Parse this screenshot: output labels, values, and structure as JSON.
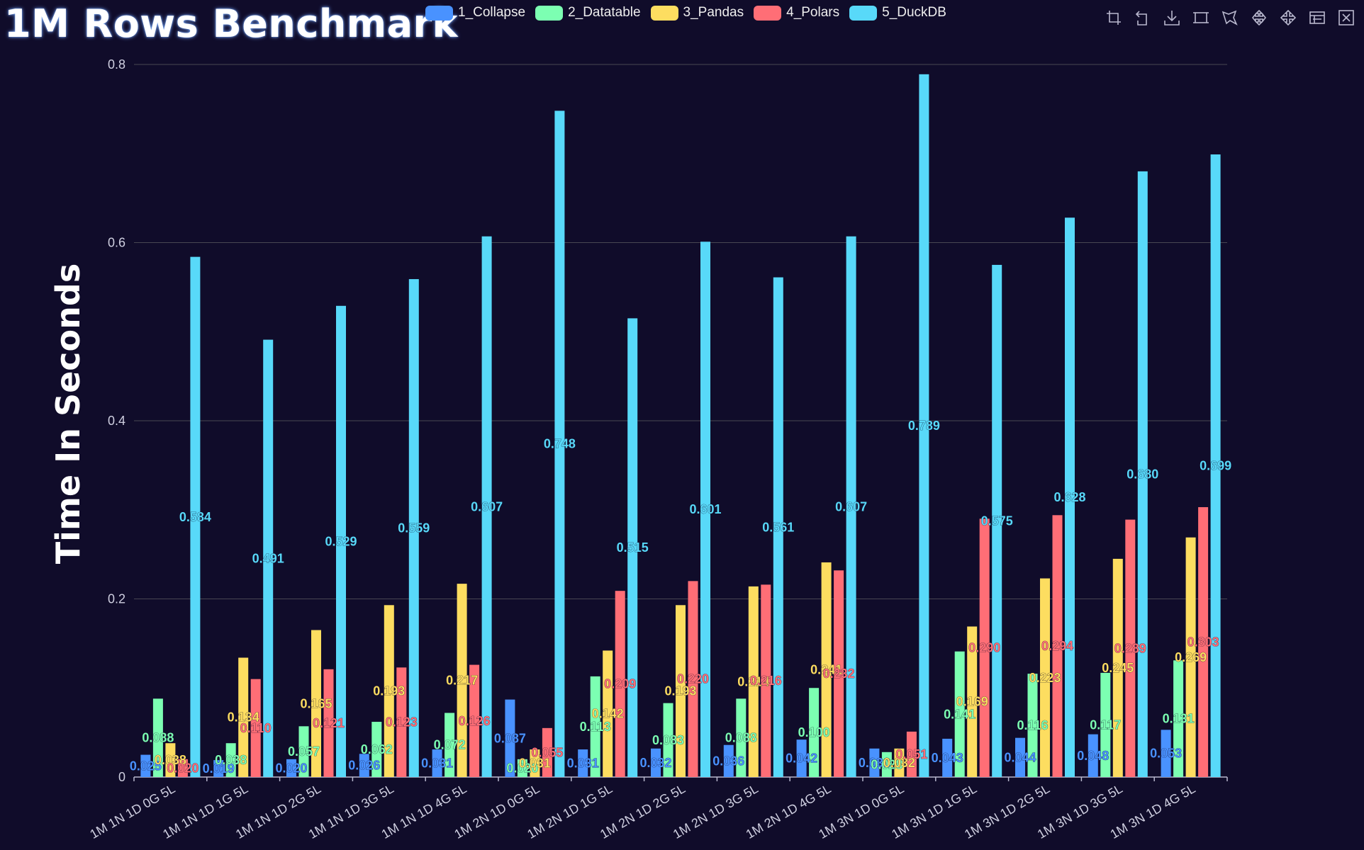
{
  "title": "1M Rows Benchmark",
  "legend": {
    "position": "top",
    "items": [
      {
        "label": "1_Collapse",
        "color": "#4992ff"
      },
      {
        "label": "2_Datatable",
        "color": "#7cffb2"
      },
      {
        "label": "3_Pandas",
        "color": "#fddd60"
      },
      {
        "label": "4_Polars",
        "color": "#ff6e76"
      },
      {
        "label": "5_DuckDB",
        "color": "#58d9f9"
      }
    ]
  },
  "toolbox": [
    {
      "name": "zoom-icon"
    },
    {
      "name": "zoom-reset-icon"
    },
    {
      "name": "save-image-icon"
    },
    {
      "name": "rect-select-icon"
    },
    {
      "name": "polygon-select-icon"
    },
    {
      "name": "keep-selection-icon"
    },
    {
      "name": "clear-selection-icon"
    },
    {
      "name": "data-view-icon"
    },
    {
      "name": "restore-icon"
    }
  ],
  "colors": {
    "background": "#100c2a",
    "grid": "#484753",
    "axis": "#b9b8ce"
  },
  "chart_data": {
    "type": "bar",
    "title": "1M Rows Benchmark",
    "ylabel": "Time In Seconds",
    "xlabel": "",
    "ylim": [
      0,
      0.8
    ],
    "yticks": [
      "0",
      "0.2",
      "0.4",
      "0.6",
      "0.8"
    ],
    "grid": true,
    "categories": [
      "1M 1N 1D 0G 5L",
      "1M 1N 1D 1G 5L",
      "1M 1N 1D 2G 5L",
      "1M 1N 1D 3G 5L",
      "1M 1N 1D 4G 5L",
      "1M 2N 1D 0G 5L",
      "1M 2N 1D 1G 5L",
      "1M 2N 1D 2G 5L",
      "1M 2N 1D 3G 5L",
      "1M 2N 1D 4G 5L",
      "1M 3N 1D 0G 5L",
      "1M 3N 1D 1G 5L",
      "1M 3N 1D 2G 5L",
      "1M 3N 1D 3G 5L",
      "1M 3N 1D 4G 5L"
    ],
    "series": [
      {
        "name": "1_Collapse",
        "color": "#4992ff",
        "values": [
          0.025,
          0.019,
          0.02,
          0.026,
          0.031,
          0.087,
          0.031,
          0.032,
          0.036,
          0.042,
          0.032,
          0.043,
          0.044,
          0.048,
          0.053
        ],
        "labels": [
          "0.025",
          "0.019",
          "0.020",
          "0.026",
          "0.031",
          "0.087",
          "0.031",
          "0.032",
          "0.036",
          "0.042",
          "0.032",
          "0.043",
          "0.044",
          "0.048",
          "0.053"
        ]
      },
      {
        "name": "2_Datatable",
        "color": "#7cffb2",
        "values": [
          0.088,
          0.038,
          0.057,
          0.062,
          0.072,
          0.02,
          0.113,
          0.083,
          0.088,
          0.1,
          0.028,
          0.141,
          0.116,
          0.117,
          0.131
        ],
        "labels": [
          "0.088",
          "0.038",
          "0.057",
          "0.062",
          "0.072",
          "0.020",
          "0.113",
          "0.083",
          "0.088",
          "0.100",
          "0.028",
          "0.141",
          "0.116",
          "0.117",
          "0.131"
        ]
      },
      {
        "name": "3_Pandas",
        "color": "#fddd60",
        "values": [
          0.038,
          0.134,
          0.165,
          0.193,
          0.217,
          0.031,
          0.142,
          0.193,
          0.214,
          0.241,
          0.032,
          0.169,
          0.223,
          0.245,
          0.269
        ],
        "labels": [
          "0.038",
          "0.134",
          "0.165",
          "0.193",
          "0.217",
          "0.031",
          "0.142",
          "0.193",
          "0.214",
          "0.241",
          "0.032",
          "0.169",
          "0.223",
          "0.245",
          "0.269"
        ]
      },
      {
        "name": "4_Polars",
        "color": "#ff6e76",
        "values": [
          0.02,
          0.11,
          0.121,
          0.123,
          0.126,
          0.055,
          0.209,
          0.22,
          0.216,
          0.232,
          0.051,
          0.29,
          0.294,
          0.289,
          0.303
        ],
        "labels": [
          "0.020",
          "0.110",
          "0.121",
          "0.123",
          "0.126",
          "0.055",
          "0.209",
          "0.220",
          "0.216",
          "0.232",
          "0.051",
          "0.290",
          "0.294",
          "0.289",
          "0.303"
        ]
      },
      {
        "name": "5_DuckDB",
        "color": "#58d9f9",
        "values": [
          0.584,
          0.491,
          0.529,
          0.559,
          0.607,
          0.748,
          0.515,
          0.601,
          0.561,
          0.607,
          0.789,
          0.575,
          0.628,
          0.68,
          0.699
        ],
        "labels": [
          "0.584",
          "0.491",
          "0.529",
          "0.559",
          "0.607",
          "0.748",
          "0.515",
          "0.601",
          "0.561",
          "0.607",
          "0.789",
          "0.575",
          "0.628",
          "0.680",
          "0.699"
        ]
      }
    ]
  }
}
